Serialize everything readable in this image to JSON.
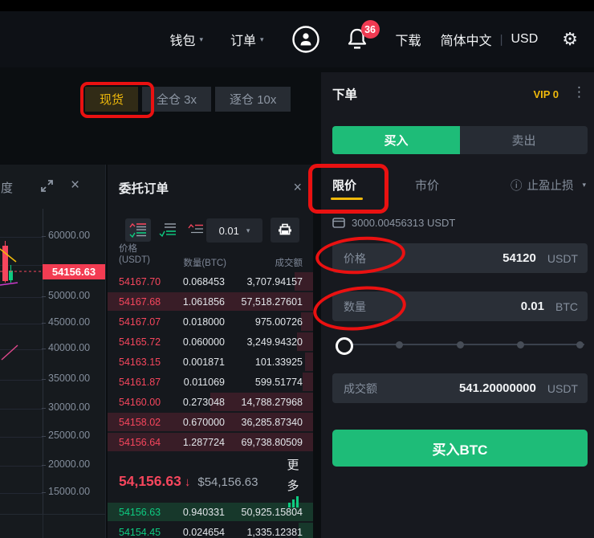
{
  "nav": {
    "wallet": "钱包",
    "orders": "订单",
    "badge": "36",
    "download": "下载",
    "language": "简体中文",
    "divider": "|",
    "currency": "USD"
  },
  "icons": {
    "caret": "▾",
    "close": "×",
    "gear": "⚙",
    "dots": "⋮",
    "info": "ⓘ"
  },
  "market_tabs": {
    "spot": "现货",
    "cross": "全仓 3x",
    "isolated": "逐仓 10x"
  },
  "chart": {
    "header_label": "度",
    "price_tag": "54156.63",
    "y_ticks": [
      "60000.00",
      "50000.00",
      "45000.00",
      "40000.00",
      "35000.00",
      "30000.00",
      "25000.00",
      "20000.00",
      "15000.00"
    ]
  },
  "orderbook": {
    "title": "委托订单",
    "precision": "0.01",
    "col_price_l1": "价格",
    "col_price_l2": "(USDT)",
    "col_qty": "数量(BTC)",
    "col_total": "成交额",
    "asks": [
      {
        "price": "54167.70",
        "qty": "0.068453",
        "total": "3,707.94157",
        "depth": 9
      },
      {
        "price": "54167.68",
        "qty": "1.061856",
        "total": "57,518.27601",
        "depth": 100
      },
      {
        "price": "54167.07",
        "qty": "0.018000",
        "total": "975.00726",
        "depth": 6
      },
      {
        "price": "54165.72",
        "qty": "0.060000",
        "total": "3,249.94320",
        "depth": 8
      },
      {
        "price": "54163.15",
        "qty": "0.001871",
        "total": "101.33925",
        "depth": 4
      },
      {
        "price": "54161.87",
        "qty": "0.011069",
        "total": "599.51774",
        "depth": 5
      },
      {
        "price": "54160.00",
        "qty": "0.273048",
        "total": "14,788.27968",
        "depth": 50
      },
      {
        "price": "54158.02",
        "qty": "0.670000",
        "total": "36,285.87340",
        "depth": 100
      },
      {
        "price": "54156.64",
        "qty": "1.287724",
        "total": "69,738.80509",
        "depth": 100
      }
    ],
    "bids": [
      {
        "price": "54156.63",
        "qty": "0.940331",
        "total": "50,925.15804",
        "depth": 100
      },
      {
        "price": "54154.45",
        "qty": "0.024654",
        "total": "1,335.12381",
        "depth": 7
      }
    ],
    "ticker": {
      "price": "54,156.63",
      "arrow": "↓",
      "fiat": "$54,156.63",
      "more_top": "更",
      "more_bottom": "多"
    }
  },
  "trade": {
    "title": "下单",
    "vip": "VIP 0",
    "buy_tab": "买入",
    "sell_tab": "卖出",
    "limit_tab": "限价",
    "market_tab": "市价",
    "stop_tab": "止盈止损",
    "balance": "3000.00456313 USDT",
    "price_label": "价格",
    "price_value": "54120",
    "price_unit": "USDT",
    "qty_label": "数量",
    "qty_value": "0.01",
    "qty_unit": "BTC",
    "total_label": "成交额",
    "total_value": "541.20000000",
    "total_unit": "USDT",
    "submit": "买入BTC",
    "slider_percent": 0
  },
  "colors": {
    "accent_yellow": "#f0b90b",
    "buy_green": "#1ebc78",
    "sell_red": "#f6465d",
    "price_tag_red": "#f33c52"
  }
}
